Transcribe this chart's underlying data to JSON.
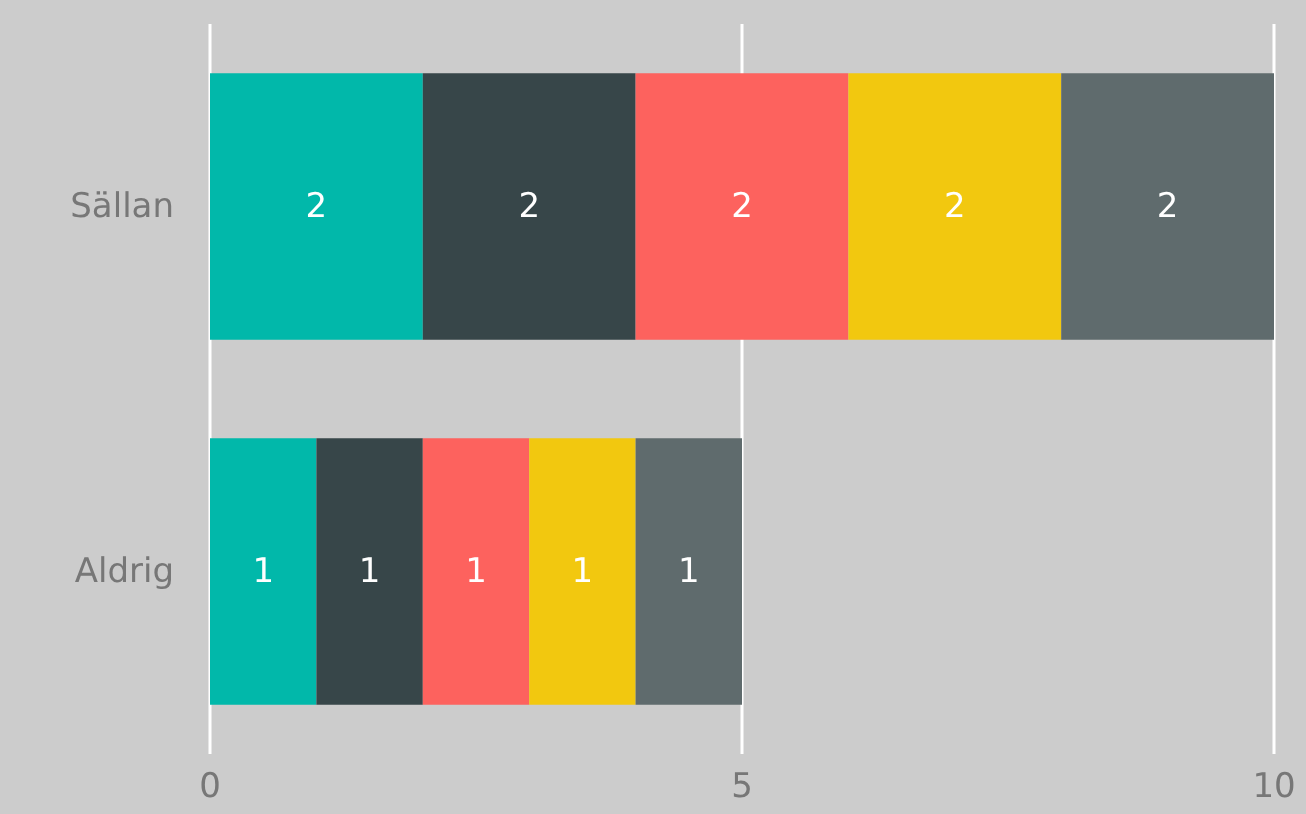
{
  "chart_data": {
    "type": "bar",
    "orientation": "horizontal",
    "stacked": true,
    "categories": [
      "Sällan",
      "Aldrig"
    ],
    "series": [
      {
        "color": "#01b8aa",
        "values": [
          2,
          1
        ]
      },
      {
        "color": "#374649",
        "values": [
          2,
          1
        ]
      },
      {
        "color": "#fd625e",
        "values": [
          2,
          1
        ]
      },
      {
        "color": "#f2c80f",
        "values": [
          2,
          1
        ]
      },
      {
        "color": "#5f6b6d",
        "values": [
          2,
          1
        ]
      }
    ],
    "xlim": [
      0,
      10
    ],
    "xticks": [
      0,
      5,
      10
    ],
    "grid": "x",
    "data_labels": true
  }
}
